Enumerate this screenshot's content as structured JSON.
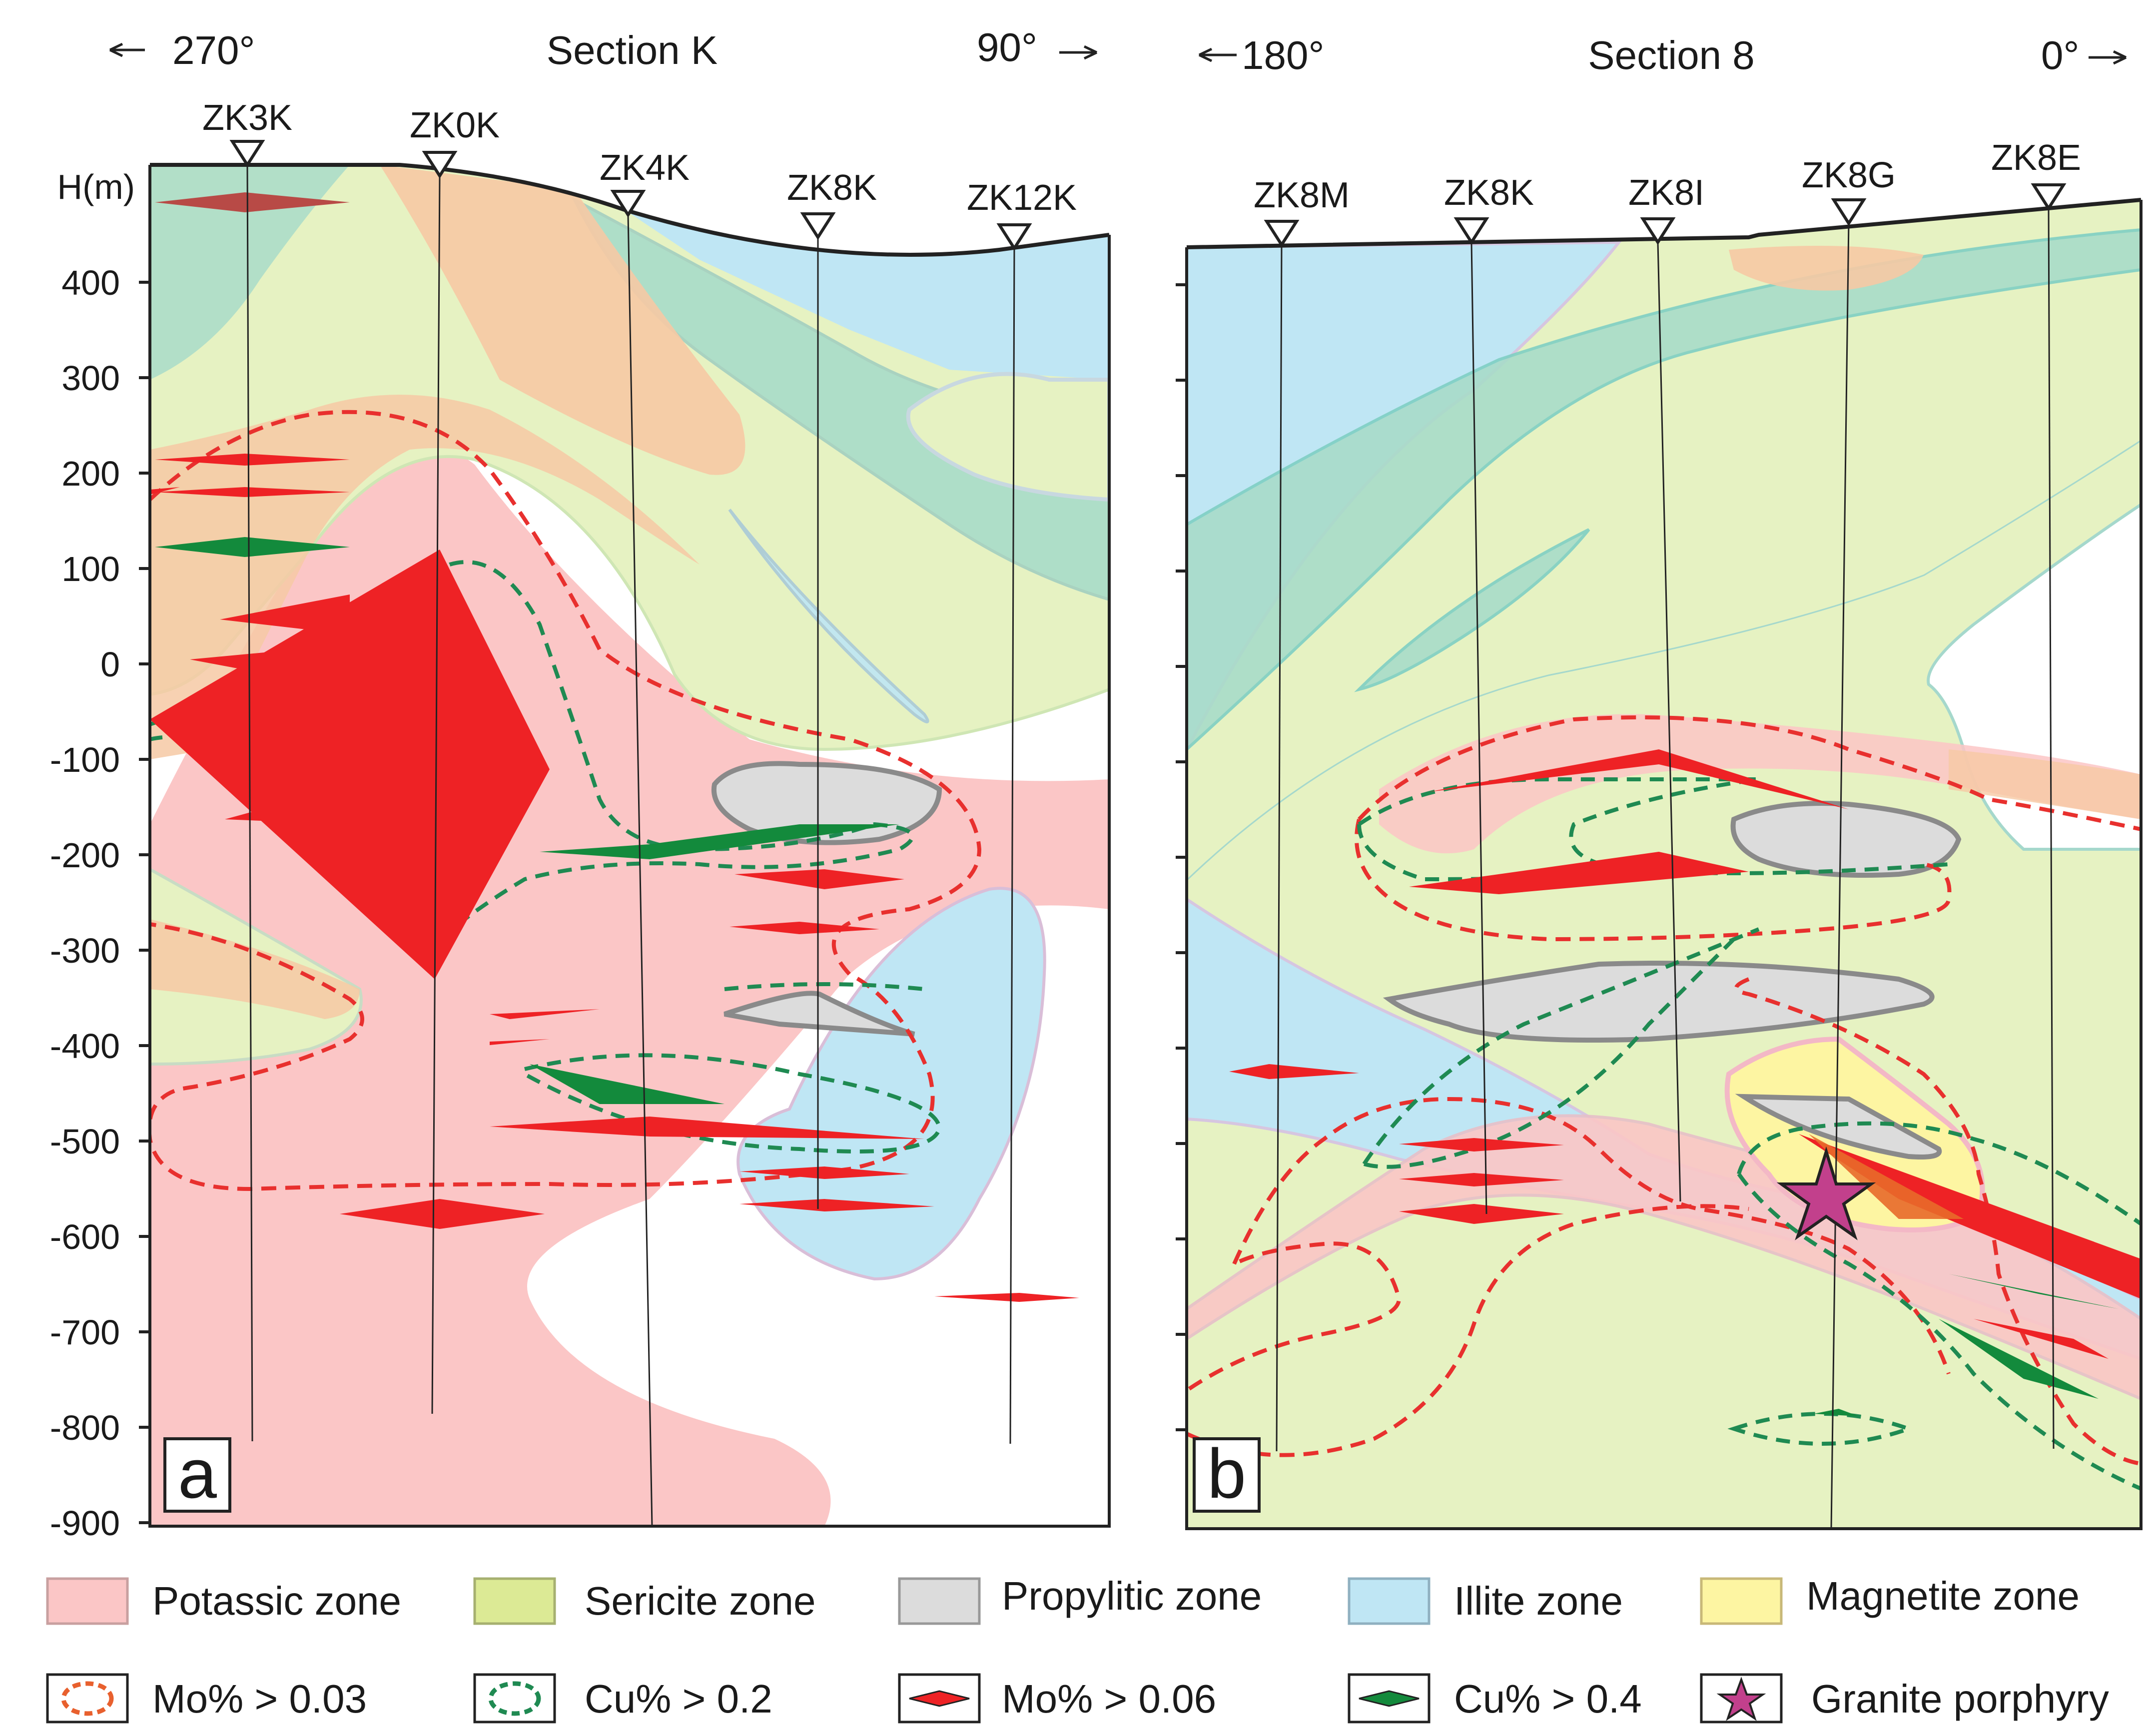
{
  "panel_a": {
    "left_direction": "270°",
    "title": "Section K",
    "right_direction": "90°",
    "panel_letter": "a",
    "axis_label": "H(m)",
    "ticks": [
      "400",
      "300",
      "200",
      "100",
      "0",
      "-100",
      "-200",
      "-300",
      "-400",
      "-500",
      "-600",
      "-700",
      "-800",
      "-900"
    ],
    "drillholes": [
      "ZK3K",
      "ZK0K",
      "ZK4K",
      "ZK8K",
      "ZK12K"
    ]
  },
  "panel_b": {
    "left_direction": "180°",
    "title": "Section 8",
    "right_direction": "0°",
    "panel_letter": "b",
    "drillholes": [
      "ZK8M",
      "ZK8K",
      "ZK8I",
      "ZK8G",
      "ZK8E"
    ]
  },
  "legend": {
    "potassic": "Potassic zone",
    "sericite": "Sericite zone",
    "propylitic": "Propylitic zone",
    "illite": "Illite zone",
    "magnetite": "Magnetite zone",
    "mo_low": "Mo% > 0.03",
    "cu_low": "Cu% > 0.2",
    "mo_high": "Mo% > 0.06",
    "cu_high": "Cu% > 0.4",
    "granite": "Granite porphyry"
  },
  "colors": {
    "potassic": "#fbc6c6",
    "sericite": "#e6f2c2",
    "propylitic": "#dcdcdc",
    "illite": "#bfe6f4",
    "magnetite": "#fdf5a2",
    "mo_line": "#e8302e",
    "cu_line": "#1f8a52",
    "mo_ore": "#ee2225",
    "cu_ore": "#138a3c",
    "granite_star": "#c2408c"
  }
}
